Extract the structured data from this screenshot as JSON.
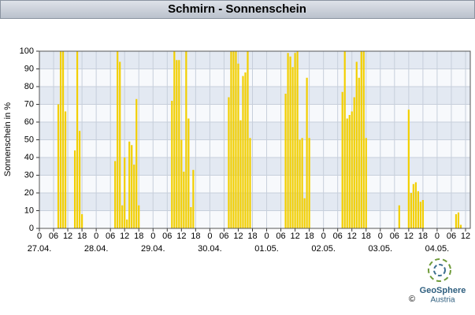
{
  "chart_data": {
    "type": "bar",
    "title": "Schmirn - Sonnenschein",
    "y_label": "Sonnenschein in %",
    "x": [
      8,
      9,
      10,
      11,
      15,
      16,
      17,
      18,
      32,
      33,
      34,
      35,
      36,
      37,
      38,
      39,
      40,
      41,
      42,
      56,
      57,
      58,
      59,
      60,
      61,
      62,
      63,
      64,
      65,
      80,
      81,
      82,
      83,
      84,
      85,
      86,
      87,
      88,
      89,
      104,
      105,
      106,
      107,
      108,
      109,
      110,
      111,
      112,
      113,
      114,
      128,
      129,
      130,
      131,
      132,
      133,
      134,
      135,
      136,
      137,
      138,
      152,
      156,
      157,
      158,
      159,
      160,
      161,
      162,
      176,
      177,
      178
    ],
    "values": [
      70,
      100,
      100,
      66,
      44,
      100,
      55,
      8,
      38,
      100,
      94,
      13,
      40,
      5,
      49,
      47,
      36,
      73,
      13,
      72,
      100,
      95,
      95,
      50,
      32,
      100,
      62,
      12,
      33,
      74,
      100,
      100,
      100,
      93,
      61,
      86,
      88,
      100,
      51,
      76,
      99,
      97,
      91,
      99,
      100,
      50,
      51,
      17,
      85,
      51,
      77,
      100,
      62,
      64,
      66,
      74,
      94,
      85,
      100,
      100,
      51,
      13,
      67,
      20,
      25,
      26,
      21,
      15,
      16,
      8,
      9,
      2
    ],
    "color": "#f2cf00",
    "xlim": [
      0,
      182
    ],
    "xticks": [
      0,
      {
        "value": 6,
        "label": "06"
      },
      12,
      18,
      {
        "value": 24,
        "label": "0"
      },
      {
        "value": 30,
        "label": "06"
      },
      {
        "value": 36,
        "label": "12"
      },
      {
        "value": 42,
        "label": "18"
      },
      {
        "value": 48,
        "label": "0"
      },
      {
        "value": 54,
        "label": "06"
      },
      {
        "value": 60,
        "label": "12"
      },
      {
        "value": 66,
        "label": "18"
      },
      {
        "value": 72,
        "label": "0"
      },
      {
        "value": 78,
        "label": "06"
      },
      {
        "value": 84,
        "label": "12"
      },
      {
        "value": 90,
        "label": "18"
      },
      {
        "value": 96,
        "label": "0"
      },
      {
        "value": 102,
        "label": "06"
      },
      {
        "value": 108,
        "label": "12"
      },
      {
        "value": 114,
        "label": "18"
      },
      {
        "value": 120,
        "label": "0"
      },
      {
        "value": 126,
        "label": "06"
      },
      {
        "value": 132,
        "label": "12"
      },
      {
        "value": 138,
        "label": "18"
      },
      {
        "value": 144,
        "label": "0"
      },
      {
        "value": 150,
        "label": "06"
      },
      {
        "value": 156,
        "label": "12"
      },
      {
        "value": 162,
        "label": "18"
      },
      {
        "value": 168,
        "label": "0"
      },
      {
        "value": 174,
        "label": "06"
      },
      {
        "value": 180,
        "label": "12"
      }
    ],
    "day_labels": [
      {
        "value": 0,
        "label": "27.04."
      },
      {
        "value": 24,
        "label": "28.04."
      },
      {
        "value": 48,
        "label": "29.04."
      },
      {
        "value": 72,
        "label": "30.04."
      },
      {
        "value": 96,
        "label": "01.05."
      },
      {
        "value": 120,
        "label": "02.05."
      },
      {
        "value": 144,
        "label": "03.05."
      },
      {
        "value": 168,
        "label": "04.05."
      }
    ],
    "ylim": [
      0,
      100
    ],
    "yticks": [
      0,
      10,
      20,
      30,
      40,
      50,
      60,
      70,
      80,
      90,
      100
    ],
    "grid": true,
    "credit": {
      "name": "GeoSphere",
      "sub": "Austria",
      "copyright": "©"
    }
  }
}
